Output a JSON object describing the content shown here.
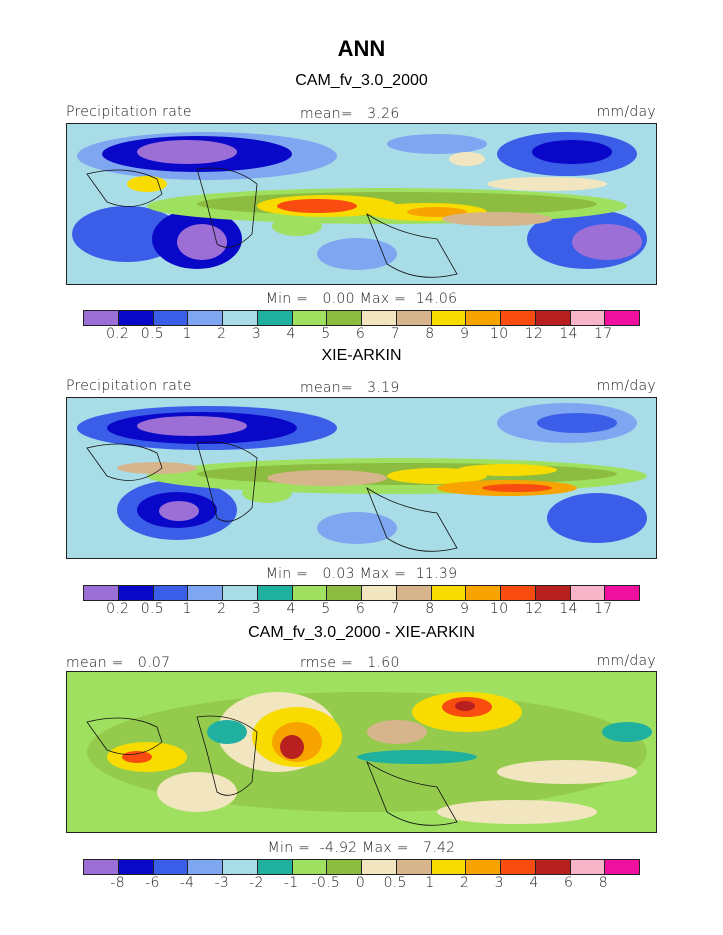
{
  "page_title": "ANN",
  "colors": [
    "#9b6fd6",
    "#0a08c8",
    "#3b5ee8",
    "#7fa6f0",
    "#a8dde8",
    "#20b0a0",
    "#a0e060",
    "#8cbc40",
    "#f2e6c0",
    "#d6b48c",
    "#f8dc00",
    "#f8a400",
    "#f84c10",
    "#b82020",
    "#f8b4c8",
    "#f010a0"
  ],
  "panels": [
    {
      "title": "CAM_fv_3.0_2000",
      "left_label": "Precipitation rate",
      "center_label": "mean=   3.26",
      "right_label": "mm/day",
      "minmax": "Min =   0.00 Max =  14.06",
      "ticks": [
        "0.2",
        "0.5",
        "1",
        "2",
        "3",
        "4",
        "5",
        "6",
        "7",
        "8",
        "9",
        "10",
        "12",
        "14",
        "17"
      ]
    },
    {
      "title": "XIE-ARKIN",
      "left_label": "Precipitation rate",
      "center_label": "mean=   3.19",
      "right_label": "mm/day",
      "minmax": "Min =   0.03 Max =  11.39",
      "ticks": [
        "0.2",
        "0.5",
        "1",
        "2",
        "3",
        "4",
        "5",
        "6",
        "7",
        "8",
        "9",
        "10",
        "12",
        "14",
        "17"
      ]
    },
    {
      "title": "CAM_fv_3.0_2000 - XIE-ARKIN",
      "left_label": "mean =   0.07",
      "center_label": "rmse =   1.60",
      "right_label": "mm/day",
      "minmax": "Min =  -4.92 Max =   7.42",
      "ticks": [
        "-8",
        "-6",
        "-4",
        "-3",
        "-2",
        "-1",
        "-0.5",
        "0",
        "0.5",
        "1",
        "2",
        "3",
        "4",
        "6",
        "8"
      ]
    }
  ]
}
